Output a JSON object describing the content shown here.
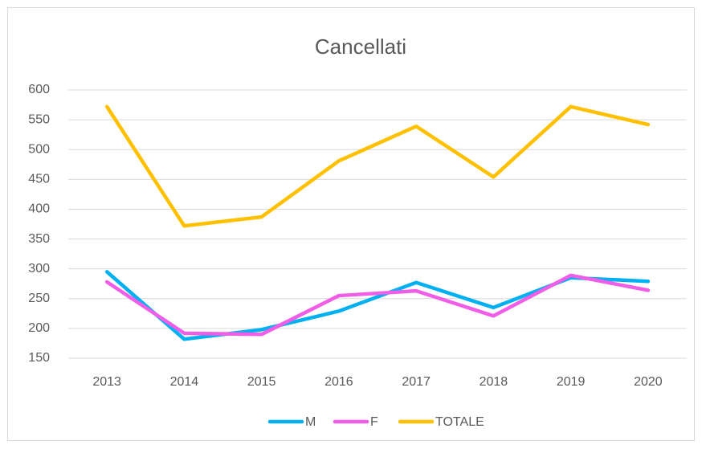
{
  "chart_data": {
    "type": "line",
    "title": "Cancellati",
    "categories": [
      "2013",
      "2014",
      "2015",
      "2016",
      "2017",
      "2018",
      "2019",
      "2020"
    ],
    "series": [
      {
        "name": "M",
        "color": "#00b0f0",
        "values": [
          295,
          182,
          198,
          229,
          277,
          235,
          285,
          279
        ]
      },
      {
        "name": "F",
        "color": "#f05ee8",
        "values": [
          278,
          192,
          190,
          255,
          263,
          221,
          289,
          264
        ]
      },
      {
        "name": "TOTALE",
        "color": "#ffc000",
        "values": [
          572,
          372,
          387,
          481,
          539,
          454,
          572,
          542
        ]
      }
    ],
    "ylim": [
      150,
      600
    ],
    "yticks": [
      150,
      200,
      250,
      300,
      350,
      400,
      450,
      500,
      550,
      600
    ],
    "grid": true,
    "legend": "bottom"
  }
}
